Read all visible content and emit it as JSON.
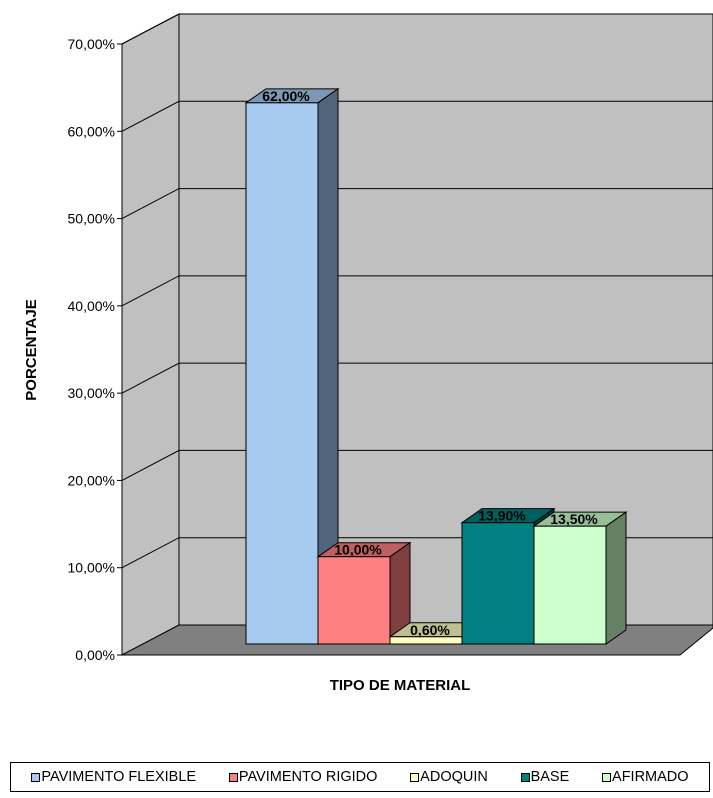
{
  "chart_data": {
    "type": "bar",
    "title": "",
    "xlabel": "TIPO DE MATERIAL",
    "ylabel": "PORCENTAJE",
    "ylim": [
      0,
      70
    ],
    "yticks": [
      "0,00%",
      "10,00%",
      "20,00%",
      "30,00%",
      "40,00%",
      "50,00%",
      "60,00%",
      "70,00%"
    ],
    "grid": true,
    "legend_position": "bottom",
    "three_d": true,
    "categories": [
      "PAVIMENTO FLEXIBLE",
      "PAVIMENTO RIGIDO",
      "ADOQUIN",
      "BASE",
      "AFIRMADO"
    ],
    "values": [
      62.0,
      10.0,
      0.6,
      13.9,
      13.5
    ],
    "data_labels": [
      "62,00%",
      "10,00%",
      "0,60%",
      "13,90%",
      "13,50%"
    ],
    "colors": {
      "front": [
        "#A6CAF0",
        "#FF8080",
        "#FFFFC0",
        "#008080",
        "#CCFFCC"
      ],
      "side": [
        "#53657A",
        "#804040",
        "#808060",
        "#004040",
        "#668066"
      ],
      "top": [
        "#7D98B4",
        "#BF6060",
        "#BFBF90",
        "#006060",
        "#99BF99"
      ],
      "walls": "#C0C0C0",
      "floor": "#808080"
    }
  },
  "legend": {
    "items": [
      {
        "label": "PAVIMENTO FLEXIBLE",
        "color": "#A6CAF0"
      },
      {
        "label": "PAVIMENTO RIGIDO",
        "color": "#FF8080"
      },
      {
        "label": "ADOQUIN",
        "color": "#FFFFC0"
      },
      {
        "label": "BASE",
        "color": "#008080"
      },
      {
        "label": "AFIRMADO",
        "color": "#CCFFCC"
      }
    ]
  }
}
